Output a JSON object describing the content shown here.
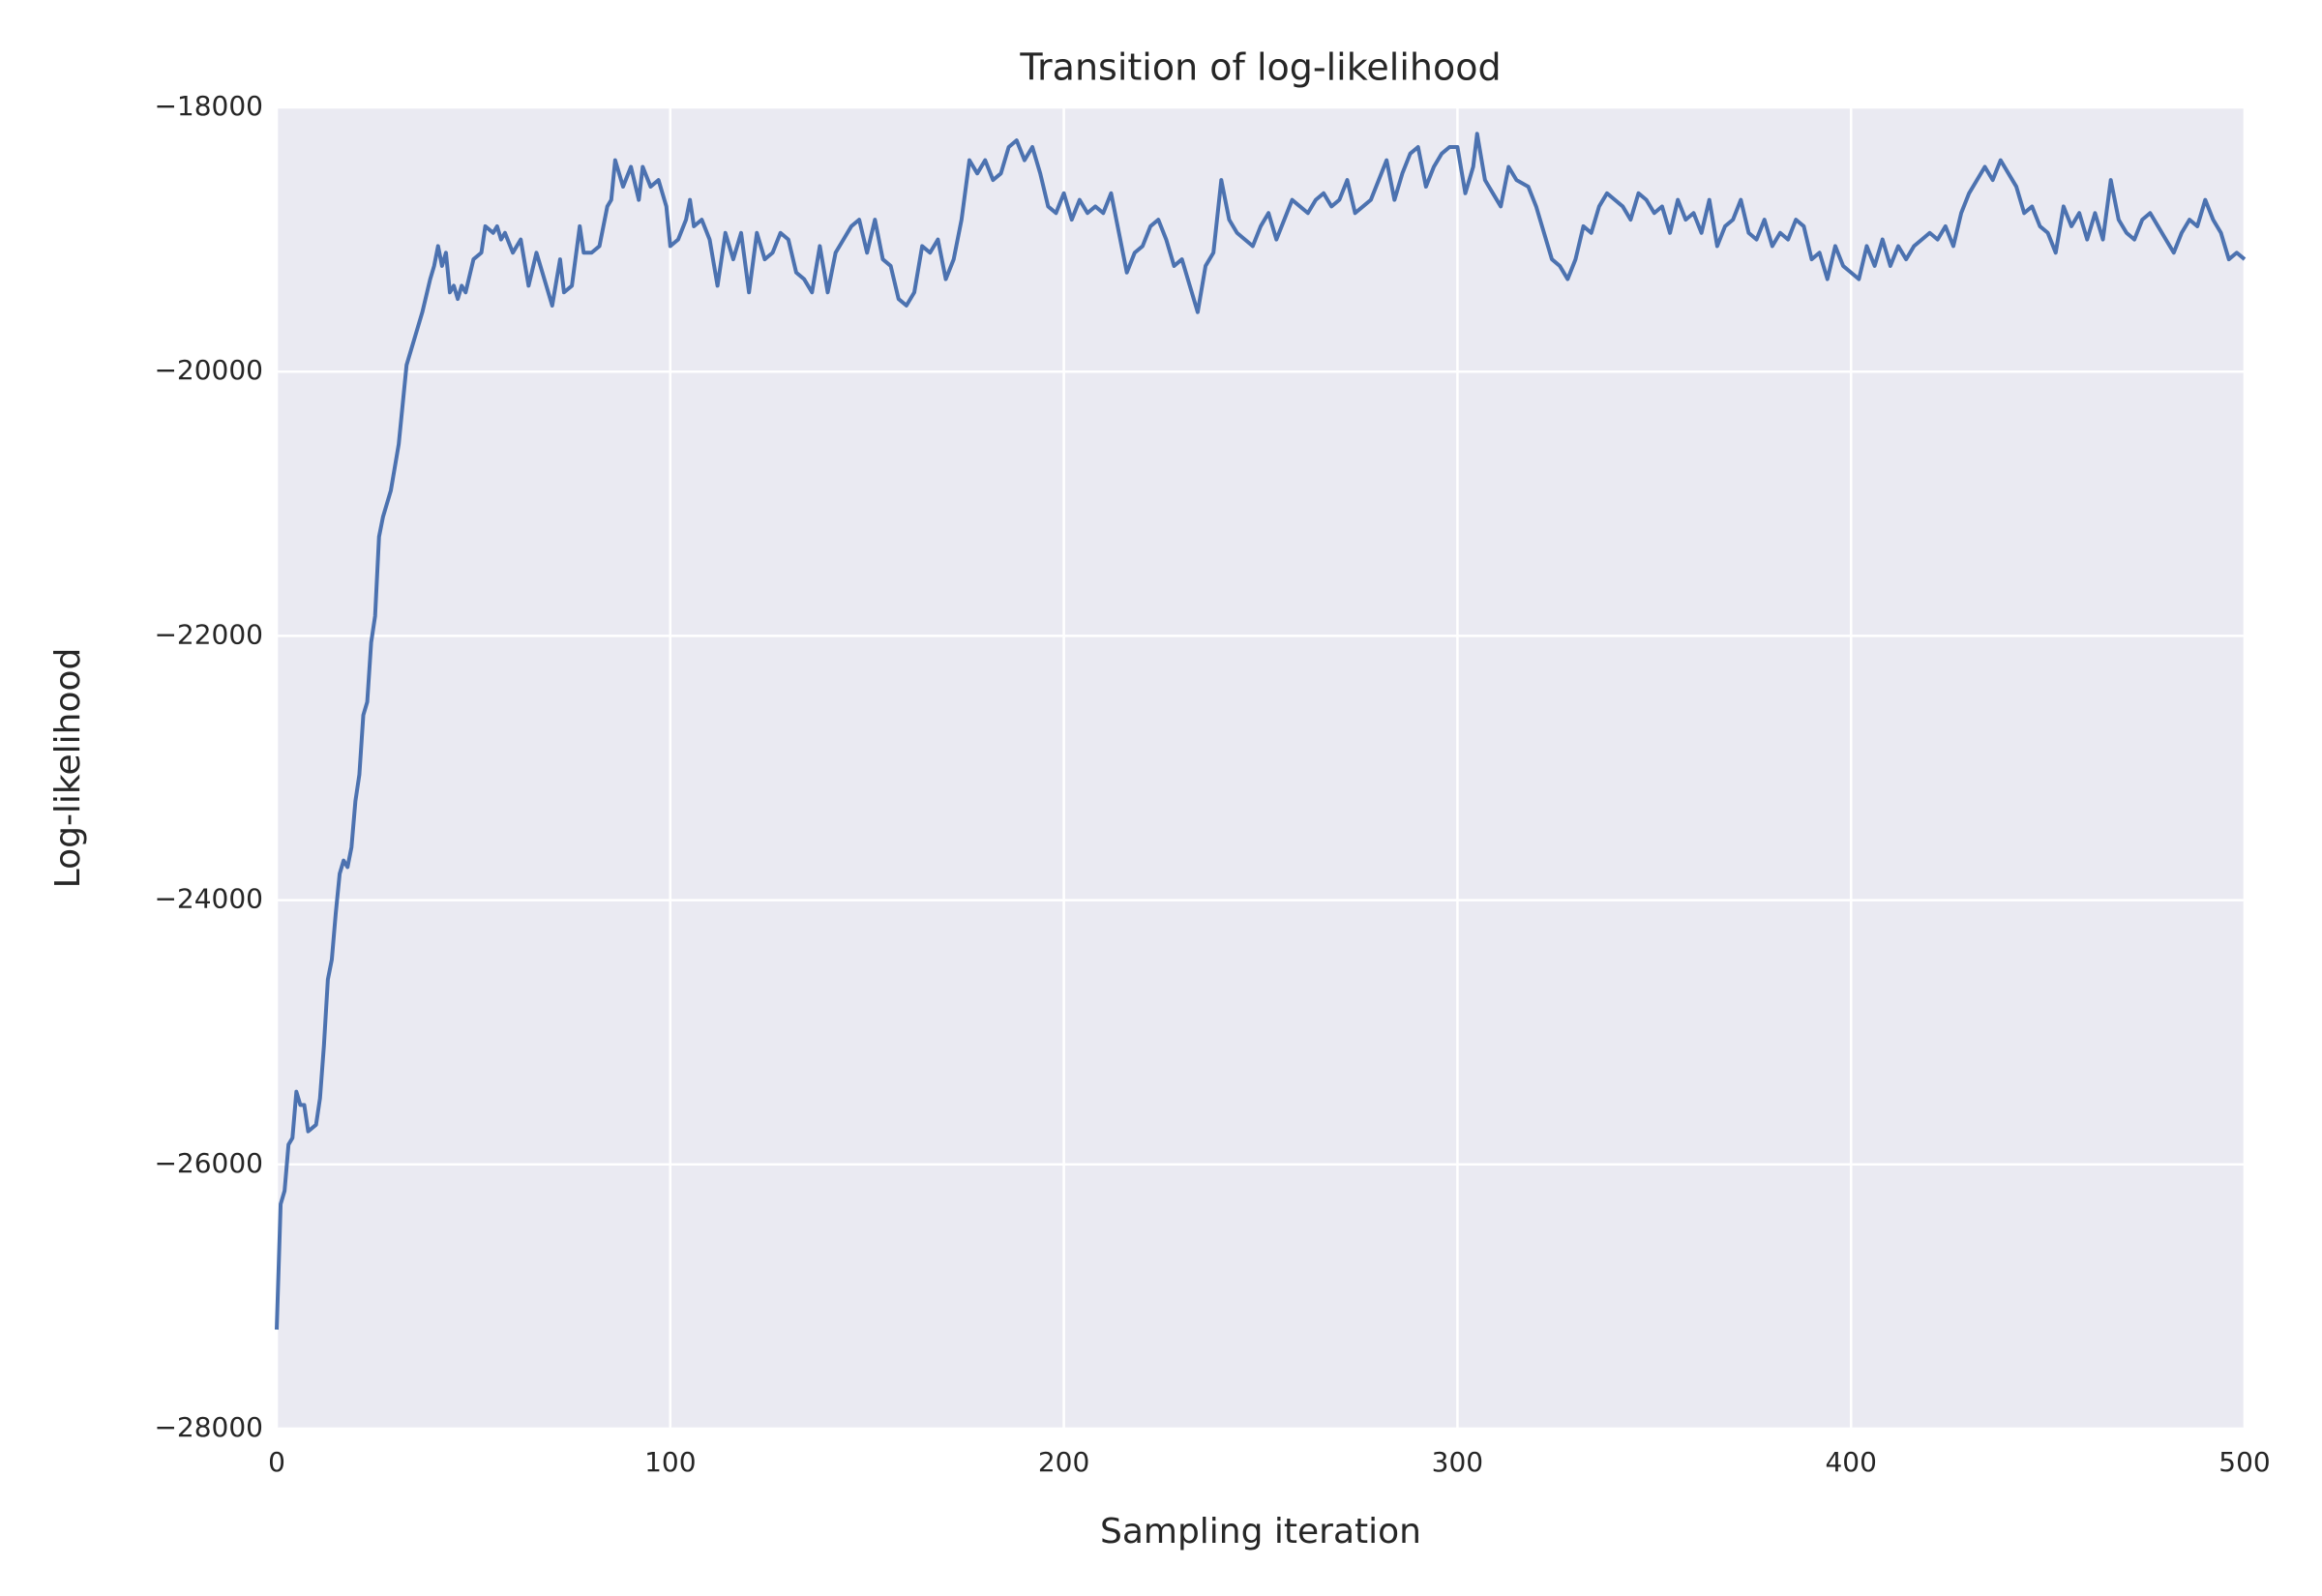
{
  "chart_data": {
    "type": "line",
    "title": "Transition of log-likelihood",
    "x_label": "Sampling iteration",
    "y_label": "Log-likelihood",
    "x": [
      0,
      1,
      2,
      3,
      4,
      5,
      6,
      7,
      8,
      10,
      11,
      12,
      13,
      14,
      15,
      16,
      17,
      18,
      19,
      20,
      21,
      22,
      23,
      24,
      25,
      26,
      27,
      28,
      29,
      31,
      32,
      33,
      35,
      37,
      39,
      40,
      41,
      42,
      43,
      44,
      45,
      46,
      47,
      48,
      50,
      52,
      53,
      55,
      56,
      57,
      58,
      60,
      62,
      64,
      66,
      68,
      70,
      72,
      73,
      75,
      77,
      78,
      80,
      82,
      84,
      85,
      86,
      88,
      90,
      92,
      93,
      95,
      97,
      99,
      100,
      102,
      104,
      105,
      106,
      108,
      110,
      112,
      114,
      116,
      118,
      120,
      122,
      124,
      126,
      128,
      130,
      132,
      134,
      136,
      138,
      140,
      142,
      144,
      146,
      148,
      150,
      152,
      154,
      156,
      158,
      160,
      162,
      164,
      166,
      168,
      170,
      172,
      174,
      176,
      178,
      180,
      182,
      184,
      186,
      188,
      190,
      192,
      194,
      196,
      198,
      200,
      202,
      204,
      206,
      208,
      210,
      212,
      214,
      216,
      218,
      220,
      222,
      224,
      226,
      228,
      230,
      232,
      234,
      236,
      238,
      240,
      242,
      244,
      246,
      248,
      250,
      252,
      254,
      256,
      258,
      260,
      262,
      264,
      266,
      268,
      270,
      272,
      274,
      276,
      278,
      280,
      282,
      284,
      286,
      288,
      290,
      292,
      294,
      296,
      298,
      300,
      302,
      304,
      305,
      307,
      309,
      311,
      313,
      315,
      318,
      320,
      322,
      324,
      326,
      328,
      330,
      332,
      334,
      336,
      338,
      340,
      342,
      344,
      346,
      348,
      350,
      352,
      354,
      356,
      358,
      360,
      362,
      364,
      366,
      368,
      370,
      372,
      374,
      376,
      378,
      380,
      382,
      384,
      386,
      388,
      390,
      392,
      394,
      396,
      398,
      400,
      402,
      404,
      406,
      408,
      410,
      412,
      414,
      416,
      418,
      420,
      422,
      424,
      426,
      428,
      430,
      432,
      434,
      436,
      438,
      440,
      442,
      444,
      446,
      448,
      450,
      452,
      454,
      456,
      458,
      460,
      462,
      464,
      466,
      468,
      470,
      472,
      474,
      476,
      478,
      480,
      482,
      484,
      486,
      488,
      490,
      492,
      494,
      496,
      498,
      500
    ],
    "series": [
      {
        "name": "Log-likelihood",
        "color": "#4c72b0",
        "values": [
          -27250,
          -26300,
          -26200,
          -25850,
          -25800,
          -25450,
          -25550,
          -25550,
          -25750,
          -25700,
          -25500,
          -25100,
          -24600,
          -24450,
          -24100,
          -23800,
          -23700,
          -23750,
          -23600,
          -23250,
          -23050,
          -22600,
          -22500,
          -22050,
          -21850,
          -21250,
          -21100,
          -21000,
          -20900,
          -20550,
          -20250,
          -19950,
          -19750,
          -19550,
          -19300,
          -19200,
          -19050,
          -19200,
          -19100,
          -19400,
          -19350,
          -19450,
          -19350,
          -19400,
          -19150,
          -19100,
          -18900,
          -18950,
          -18900,
          -19000,
          -18950,
          -19100,
          -19000,
          -19350,
          -19100,
          -19300,
          -19500,
          -19150,
          -19400,
          -19350,
          -18900,
          -19100,
          -19100,
          -19050,
          -18750,
          -18700,
          -18400,
          -18600,
          -18450,
          -18700,
          -18450,
          -18600,
          -18550,
          -18750,
          -19050,
          -19000,
          -18850,
          -18700,
          -18900,
          -18850,
          -19000,
          -19350,
          -18950,
          -19150,
          -18950,
          -19400,
          -18950,
          -19150,
          -19100,
          -18950,
          -19000,
          -19250,
          -19300,
          -19400,
          -19050,
          -19400,
          -19100,
          -19000,
          -18900,
          -18850,
          -19100,
          -18850,
          -19150,
          -19200,
          -19450,
          -19500,
          -19400,
          -19050,
          -19100,
          -19000,
          -19300,
          -19150,
          -18850,
          -18400,
          -18500,
          -18400,
          -18550,
          -18500,
          -18300,
          -18250,
          -18400,
          -18300,
          -18500,
          -18750,
          -18800,
          -18650,
          -18850,
          -18700,
          -18800,
          -18750,
          -18800,
          -18650,
          -18950,
          -19250,
          -19100,
          -19050,
          -18900,
          -18850,
          -19000,
          -19200,
          -19150,
          -19350,
          -19550,
          -19200,
          -19100,
          -18550,
          -18850,
          -18950,
          -19000,
          -19050,
          -18900,
          -18800,
          -19000,
          -18850,
          -18700,
          -18750,
          -18800,
          -18700,
          -18650,
          -18750,
          -18700,
          -18550,
          -18800,
          -18750,
          -18700,
          -18550,
          -18400,
          -18700,
          -18500,
          -18350,
          -18300,
          -18600,
          -18450,
          -18350,
          -18300,
          -18300,
          -18650,
          -18450,
          -18200,
          -18550,
          -18650,
          -18750,
          -18450,
          -18550,
          -18600,
          -18750,
          -18950,
          -19150,
          -19200,
          -19300,
          -19150,
          -18900,
          -18950,
          -18750,
          -18650,
          -18700,
          -18750,
          -18850,
          -18650,
          -18700,
          -18800,
          -18750,
          -18950,
          -18700,
          -18850,
          -18800,
          -18950,
          -18700,
          -19050,
          -18900,
          -18850,
          -18700,
          -18950,
          -19000,
          -18850,
          -19050,
          -18950,
          -19000,
          -18850,
          -18900,
          -19150,
          -19100,
          -19300,
          -19050,
          -19200,
          -19250,
          -19300,
          -19050,
          -19200,
          -19000,
          -19200,
          -19050,
          -19150,
          -19050,
          -19000,
          -18950,
          -19000,
          -18900,
          -19050,
          -18800,
          -18650,
          -18550,
          -18450,
          -18550,
          -18400,
          -18500,
          -18600,
          -18800,
          -18750,
          -18900,
          -18950,
          -19100,
          -18750,
          -18900,
          -18800,
          -19000,
          -18800,
          -19000,
          -18550,
          -18850,
          -18950,
          -19000,
          -18850,
          -18800,
          -18900,
          -19000,
          -19100,
          -18950,
          -18850,
          -18900,
          -18700,
          -18850,
          -18950,
          -19150,
          -19100,
          -19150
        ]
      }
    ],
    "xlim": [
      0,
      500
    ],
    "xticks": [
      0,
      100,
      200,
      300,
      400,
      500
    ],
    "ylim": [
      -28000,
      -18000
    ],
    "yticks": [
      {
        "value": -28000,
        "label": "−28000"
      },
      {
        "value": -26000,
        "label": "−26000"
      },
      {
        "value": -24000,
        "label": "−24000"
      },
      {
        "value": -22000,
        "label": "−22000"
      },
      {
        "value": -20000,
        "label": "−20000"
      },
      {
        "value": -18000,
        "label": "−18000"
      }
    ],
    "grid": true
  }
}
